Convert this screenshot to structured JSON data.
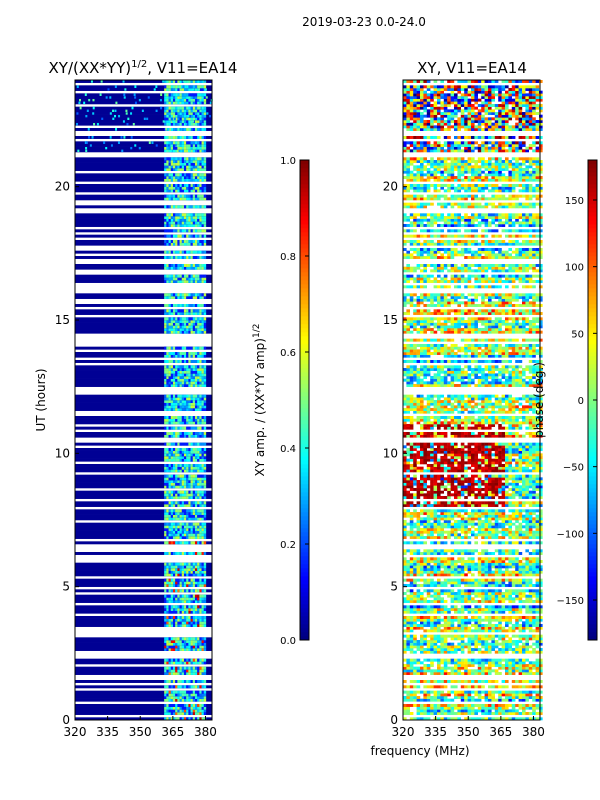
{
  "figure": {
    "suptitle": "2019-03-23 0.0-24.0",
    "xlabel": "frequency (MHz)"
  },
  "chart_data": [
    {
      "type": "heatmap",
      "title_main": "XY/(XX*YY)",
      "title_sup": "1/2",
      "title_tail": ", V11=EA14",
      "ylabel": "UT (hours)",
      "xlim": [
        320,
        383
      ],
      "ylim": [
        0,
        24
      ],
      "xticks": [
        320,
        335,
        350,
        365,
        380
      ],
      "yticks": [
        0,
        5,
        10,
        15,
        20
      ],
      "colorbar": {
        "label_main": "XY amp. / (XX*YY amp)",
        "label_sup": "1/2",
        "range": [
          0.0,
          1.0
        ],
        "ticks": [
          "0.0",
          "0.2",
          "0.4",
          "0.6",
          "0.8",
          "1.0"
        ],
        "tick_values": [
          0.0,
          0.2,
          0.4,
          0.6,
          0.8,
          1.0
        ]
      },
      "description_bands": {
        "low_amp_freq_range": [
          320,
          360
        ],
        "high_amp_freq_range": [
          361,
          380
        ],
        "low_value": 0.02,
        "high_value": 0.4
      }
    },
    {
      "type": "heatmap",
      "title": "XY, V11=EA14",
      "ylabel": "",
      "xlim": [
        320,
        383
      ],
      "ylim": [
        0,
        24
      ],
      "xticks": [
        320,
        335,
        350,
        365,
        380
      ],
      "yticks": [
        0,
        5,
        10,
        15,
        20
      ],
      "colorbar": {
        "label": "phase (deg.)",
        "range": [
          -180,
          180
        ],
        "ticks": [
          "−150",
          "−100",
          "−50",
          "0",
          "50",
          "100",
          "150"
        ],
        "tick_values": [
          -150,
          -100,
          -50,
          0,
          50,
          100,
          150
        ]
      },
      "description_bands": {
        "warm_phase_hours": [
          8.0,
          11.0
        ],
        "warm_phase_value": 160
      }
    }
  ]
}
